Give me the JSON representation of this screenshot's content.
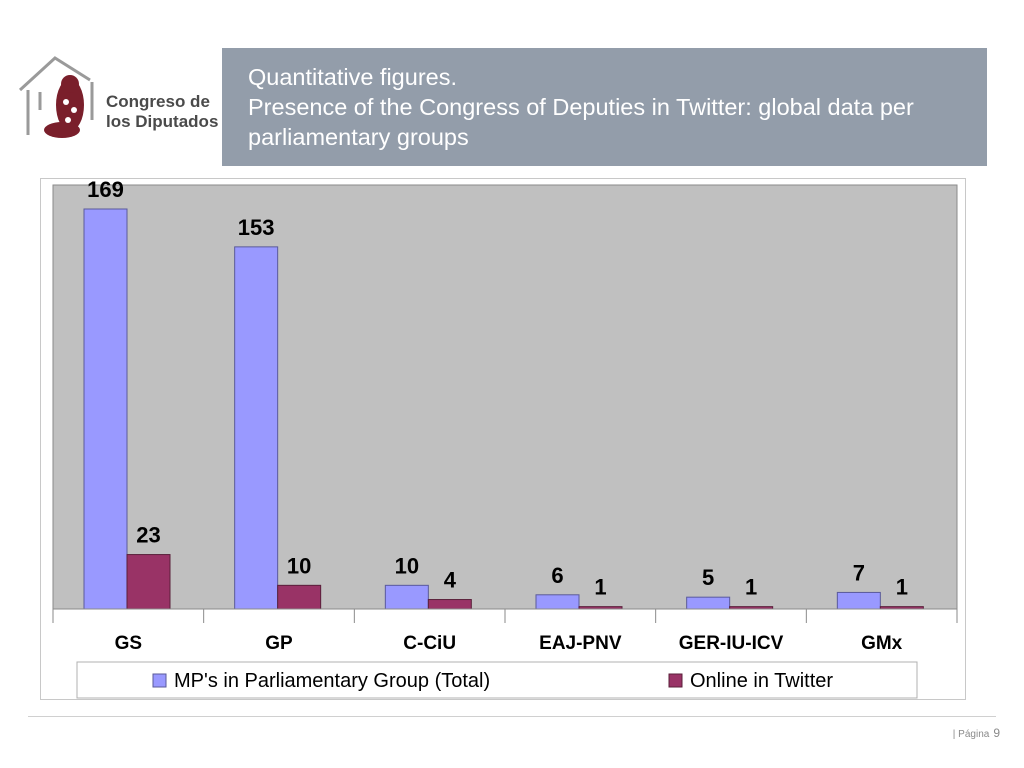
{
  "header": {
    "logo_text_line1": "Congreso de",
    "logo_text_line2": "los Diputados",
    "title": "Quantitative figures.\nPresence of the Congress of Deputies in Twitter: global data per parliamentary groups"
  },
  "footer": {
    "page_label": "| Página",
    "page_number": "9"
  },
  "colors": {
    "title_band": "#939daa",
    "plot_background": "#c0c0c0",
    "series_total": "#9999ff",
    "series_twitter": "#993366"
  },
  "chart_data": {
    "type": "bar",
    "categories": [
      "GS",
      "GP",
      "C-CiU",
      "EAJ-PNV",
      "GER-IU-ICV",
      "GMx"
    ],
    "series": [
      {
        "name": "MP's in Parliamentary Group (Total)",
        "values": [
          169,
          153,
          10,
          6,
          5,
          7
        ]
      },
      {
        "name": "Online in Twitter",
        "values": [
          23,
          10,
          4,
          1,
          1,
          1
        ]
      }
    ],
    "ylim": [
      0,
      169
    ],
    "grid": false,
    "legend_position": "bottom",
    "data_labels": true
  }
}
